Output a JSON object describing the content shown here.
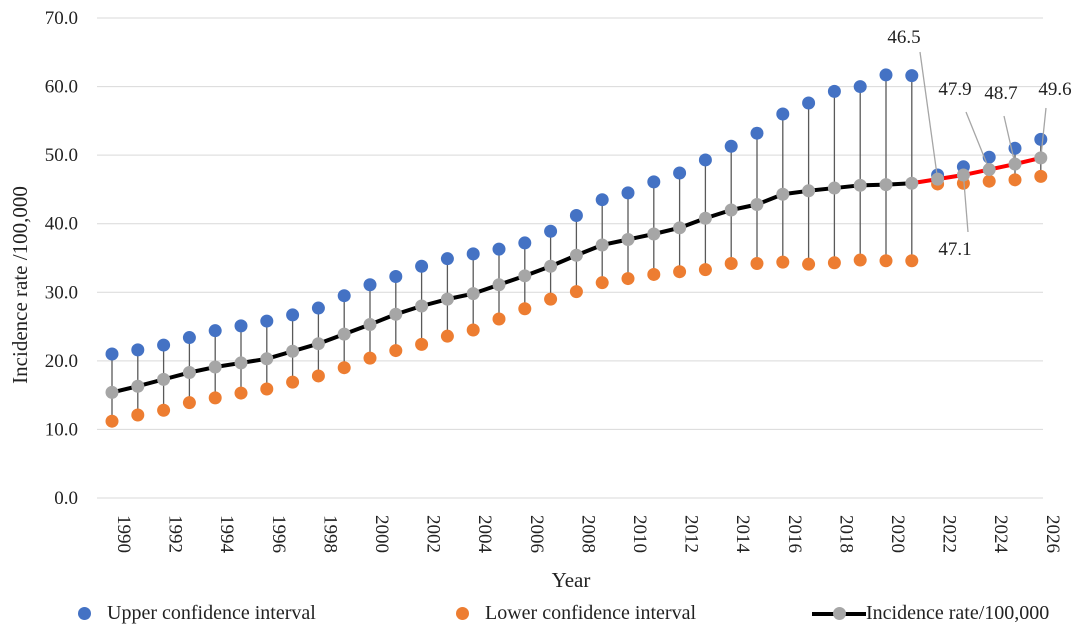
{
  "chart_data": {
    "type": "line",
    "xlabel": "Year",
    "ylabel": "Incidence rate /100,000",
    "ylim": [
      0,
      70
    ],
    "y_ticks": [
      "0.0",
      "10.0",
      "20.0",
      "30.0",
      "40.0",
      "50.0",
      "60.0",
      "70.0"
    ],
    "x_ticks": [
      "1990",
      "1992",
      "1994",
      "1996",
      "1998",
      "2000",
      "2002",
      "2004",
      "2006",
      "2008",
      "2010",
      "2012",
      "2014",
      "2016",
      "2018",
      "2020",
      "2022",
      "2024",
      "2026"
    ],
    "grid": "horizontal",
    "legend_position": "bottom",
    "colors": {
      "upper": "#4472c4",
      "lower": "#ed7d31",
      "rate_observed": "#000000",
      "rate_forecast": "#ff0000",
      "rate_marker": "#a6a6a6",
      "whisker": "#595959",
      "grid": "#d9d9d9"
    },
    "years": [
      1990,
      1991,
      1992,
      1993,
      1994,
      1995,
      1996,
      1997,
      1998,
      1999,
      2000,
      2001,
      2002,
      2003,
      2004,
      2005,
      2006,
      2007,
      2008,
      2009,
      2010,
      2011,
      2012,
      2013,
      2014,
      2015,
      2016,
      2017,
      2018,
      2019,
      2020,
      2021,
      2022,
      2023,
      2024,
      2025,
      2026
    ],
    "forecast_start_year": 2021,
    "series": [
      {
        "name": "Upper confidence interval",
        "values": [
          21.0,
          21.6,
          22.3,
          23.4,
          24.4,
          25.1,
          25.8,
          26.7,
          27.7,
          29.5,
          31.1,
          32.3,
          33.8,
          34.9,
          35.6,
          36.3,
          37.2,
          38.9,
          41.2,
          43.5,
          44.5,
          46.1,
          47.4,
          49.3,
          51.3,
          53.2,
          56.0,
          57.6,
          59.3,
          60.0,
          61.7,
          61.6,
          47.1,
          48.3,
          49.7,
          51.0,
          52.3
        ]
      },
      {
        "name": "Lower confidence interval",
        "values": [
          11.2,
          12.1,
          12.8,
          13.9,
          14.6,
          15.3,
          15.9,
          16.9,
          17.8,
          19.0,
          20.4,
          21.5,
          22.4,
          23.6,
          24.5,
          26.1,
          27.6,
          29.0,
          30.1,
          31.4,
          32.0,
          32.6,
          33.0,
          33.3,
          34.2,
          34.2,
          34.4,
          34.1,
          34.3,
          34.7,
          34.6,
          34.6,
          45.8,
          45.9,
          46.2,
          46.4,
          46.9
        ]
      },
      {
        "name": "Incidence rate/100,000",
        "values": [
          15.4,
          16.3,
          17.3,
          18.3,
          19.1,
          19.7,
          20.3,
          21.4,
          22.5,
          23.9,
          25.3,
          26.8,
          28.0,
          29.0,
          29.8,
          31.1,
          32.4,
          33.8,
          35.4,
          36.9,
          37.7,
          38.5,
          39.4,
          40.8,
          42.0,
          42.8,
          44.3,
          44.8,
          45.2,
          45.6,
          45.7,
          45.9,
          46.5,
          47.1,
          47.9,
          48.7,
          49.6
        ]
      }
    ],
    "annotations": [
      {
        "text": "46.5",
        "year": 2022
      },
      {
        "text": "47.1",
        "year": 2023
      },
      {
        "text": "47.9",
        "year": 2024
      },
      {
        "text": "48.7",
        "year": 2025
      },
      {
        "text": "49.6",
        "year": 2026
      }
    ]
  },
  "legend": {
    "upper_label": "Upper confidence interval",
    "lower_label": "Lower confidence interval",
    "rate_label": "Incidence rate/100,000"
  }
}
